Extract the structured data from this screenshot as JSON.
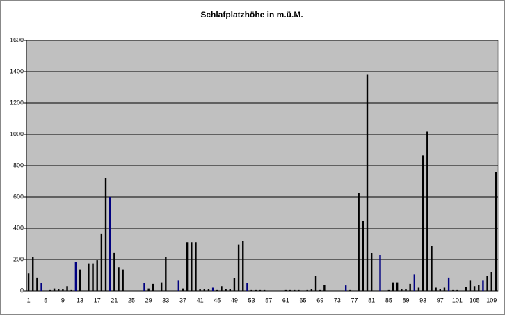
{
  "chart_data": {
    "type": "bar",
    "title": "Schlafplatzhöhe in m.ü.M.",
    "categories": [
      1,
      null,
      null,
      null,
      5,
      null,
      null,
      null,
      9,
      null,
      null,
      null,
      13,
      null,
      null,
      null,
      17,
      null,
      null,
      null,
      21,
      null,
      null,
      null,
      25,
      null,
      null,
      null,
      29,
      null,
      null,
      null,
      33,
      null,
      null,
      null,
      37,
      null,
      null,
      null,
      41,
      null,
      null,
      null,
      45,
      null,
      null,
      null,
      49,
      null,
      null,
      null,
      53,
      null,
      null,
      null,
      57,
      null,
      null,
      null,
      61,
      null,
      null,
      null,
      65,
      null,
      null,
      null,
      69,
      null,
      null,
      null,
      73,
      null,
      null,
      null,
      77,
      null,
      null,
      null,
      81,
      null,
      null,
      null,
      85,
      null,
      null,
      null,
      89,
      null,
      null,
      null,
      93,
      null,
      null,
      null,
      97,
      null,
      null,
      null,
      101,
      null,
      null,
      null,
      105,
      null,
      null,
      null,
      109,
      null
    ],
    "values": [
      110,
      215,
      85,
      50,
      0,
      5,
      15,
      10,
      10,
      30,
      5,
      185,
      135,
      0,
      175,
      175,
      195,
      365,
      720,
      600,
      245,
      150,
      135,
      0,
      0,
      0,
      0,
      50,
      15,
      45,
      0,
      55,
      215,
      0,
      0,
      65,
      15,
      310,
      310,
      310,
      10,
      10,
      10,
      20,
      5,
      30,
      10,
      10,
      80,
      295,
      320,
      50,
      5,
      5,
      5,
      5,
      0,
      0,
      0,
      0,
      5,
      5,
      5,
      5,
      0,
      5,
      10,
      95,
      5,
      40,
      0,
      0,
      0,
      0,
      35,
      5,
      0,
      625,
      445,
      1380,
      240,
      0,
      230,
      0,
      5,
      55,
      55,
      10,
      10,
      45,
      105,
      20,
      865,
      1020,
      285,
      20,
      10,
      20,
      85,
      5,
      5,
      0,
      25,
      65,
      30,
      40,
      65,
      95,
      120,
      760
    ],
    "colors": [
      "#000000",
      "#000000",
      "#000000",
      "#000080",
      "#000000",
      "#000000",
      "#000000",
      "#000000",
      "#000000",
      "#000000",
      "#000000",
      "#000080",
      "#000000",
      "#000000",
      "#000000",
      "#000000",
      "#000000",
      "#000000",
      "#000000",
      "#000080",
      "#000000",
      "#000000",
      "#000000",
      "#000000",
      "#000000",
      "#000000",
      "#000000",
      "#000080",
      "#000000",
      "#000000",
      "#000000",
      "#000000",
      "#000000",
      "#000000",
      "#000000",
      "#000080",
      "#000000",
      "#000000",
      "#000000",
      "#000000",
      "#000000",
      "#000000",
      "#000000",
      "#000080",
      "#000000",
      "#000000",
      "#000000",
      "#000000",
      "#000000",
      "#000000",
      "#000000",
      "#000080",
      "#000000",
      "#000000",
      "#000000",
      "#000000",
      "#000000",
      "#000000",
      "#000000",
      "#000000",
      "#000000",
      "#000000",
      "#000000",
      "#000000",
      "#000000",
      "#000000",
      "#000000",
      "#000000",
      "#000000",
      "#000000",
      "#000000",
      "#000000",
      "#000000",
      "#000000",
      "#000080",
      "#000000",
      "#000000",
      "#000000",
      "#000000",
      "#000000",
      "#000000",
      "#000000",
      "#000080",
      "#000000",
      "#000000",
      "#000000",
      "#000000",
      "#000000",
      "#000000",
      "#000000",
      "#000080",
      "#000000",
      "#000000",
      "#000000",
      "#000000",
      "#000000",
      "#000000",
      "#000000",
      "#000080",
      "#000000",
      "#000000",
      "#000000",
      "#000000",
      "#000000",
      "#000000",
      "#000000",
      "#000080",
      "#000000",
      "#000000",
      "#000000"
    ],
    "ylim": [
      0,
      1600
    ],
    "yticks": [
      0,
      200,
      400,
      600,
      800,
      1000,
      1200,
      1400,
      1600
    ],
    "grid": true
  }
}
